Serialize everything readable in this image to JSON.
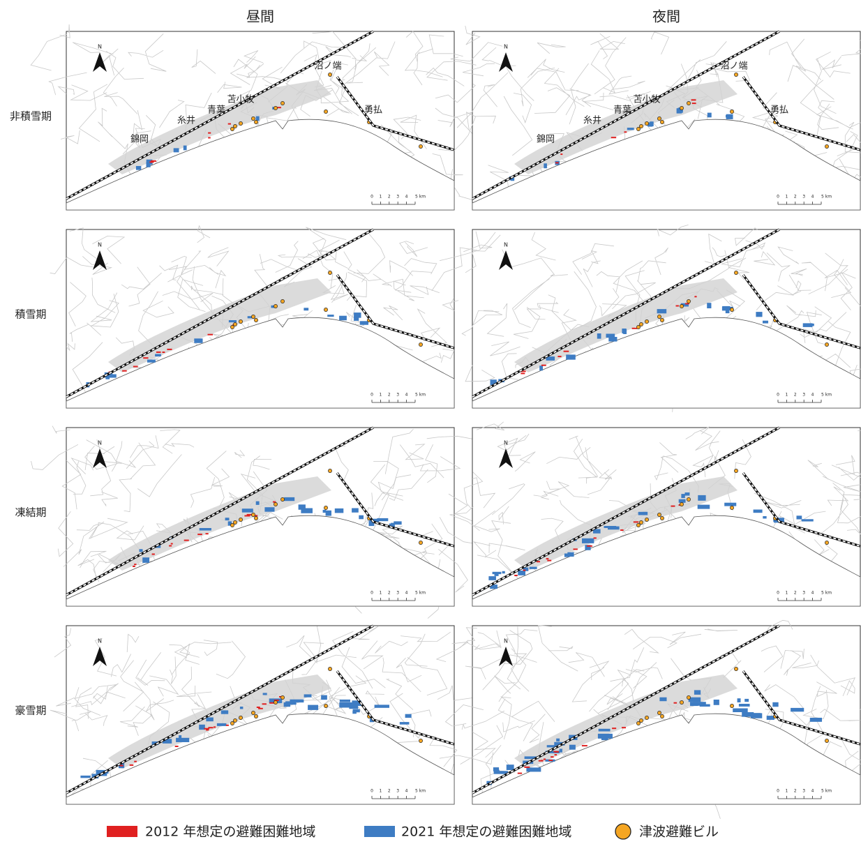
{
  "columns": [
    "昼間",
    "夜間"
  ],
  "rows": [
    "非積雪期",
    "積雪期",
    "凍結期",
    "豪雪期"
  ],
  "north_label": "N",
  "place_names": [
    "錦岡",
    "糸井",
    "青葉",
    "苫小牧",
    "沼ノ端",
    "勇払"
  ],
  "scale_labels": [
    "0",
    "1",
    "2",
    "3",
    "4",
    "5 km"
  ],
  "legend": [
    "2012 年想定の避難困難地域",
    "2021 年想定の避難困難地域",
    "津波避難ビル"
  ]
}
